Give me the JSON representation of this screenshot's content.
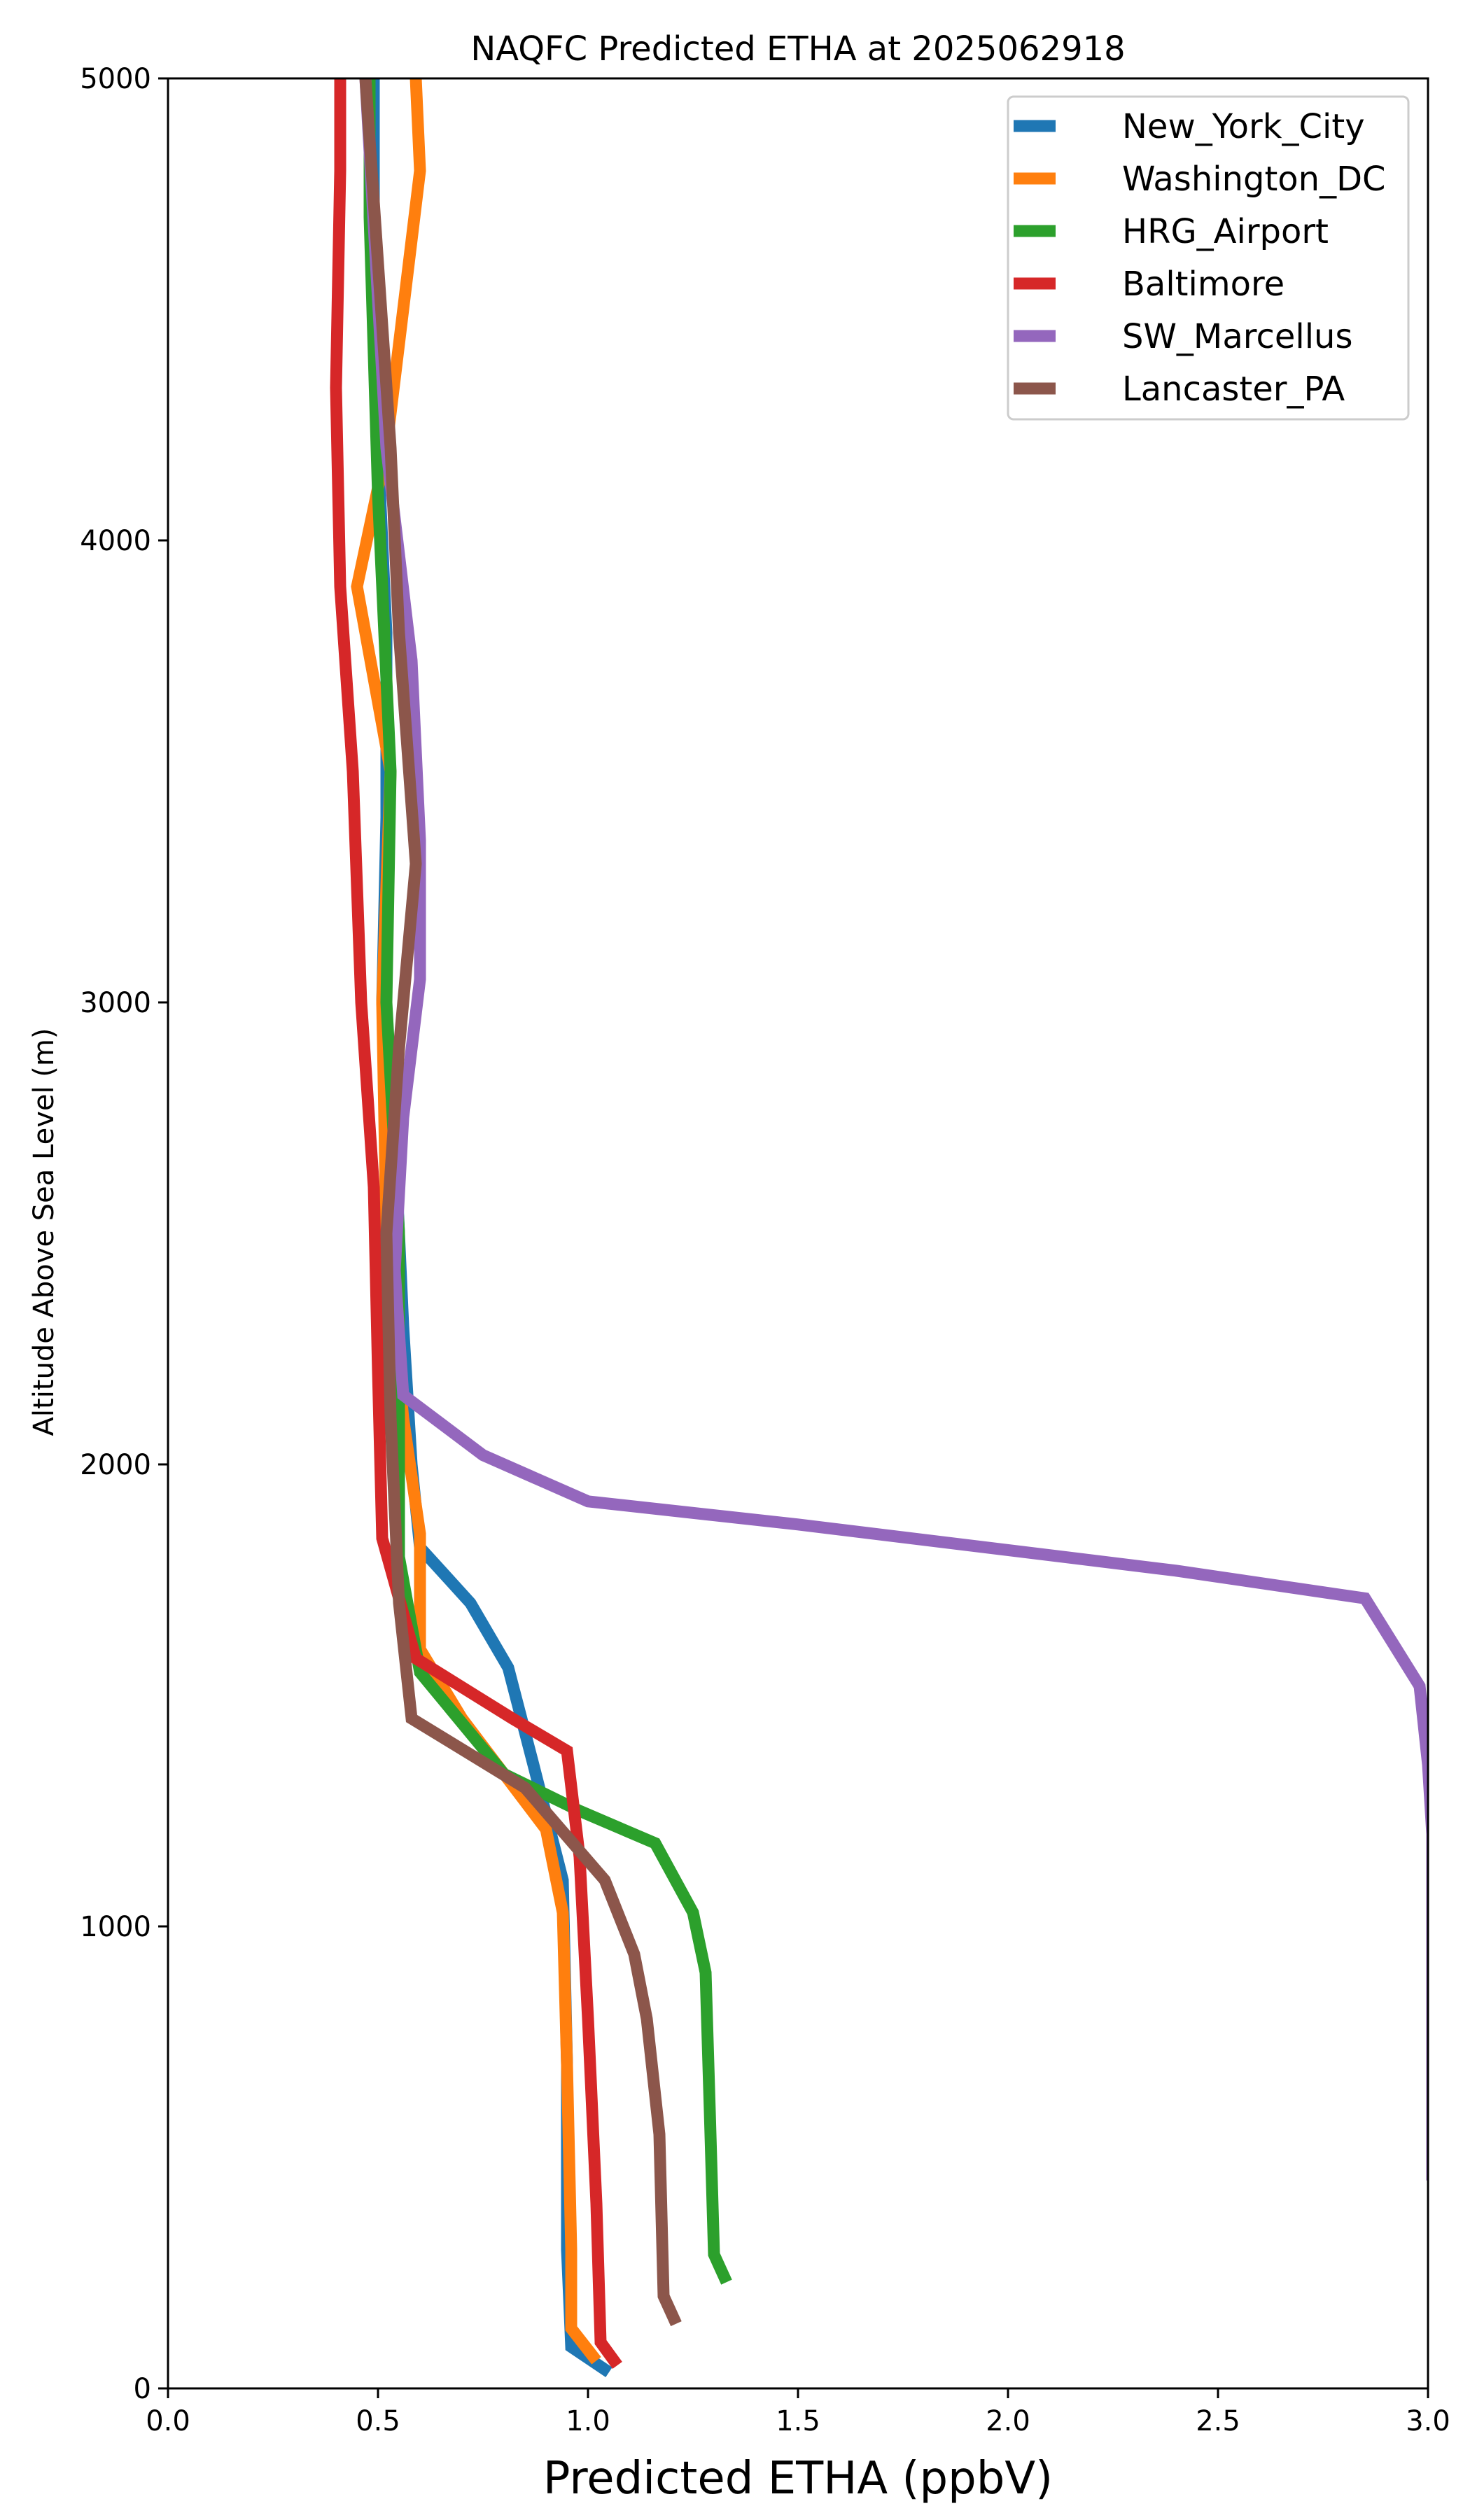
{
  "chart_data": {
    "type": "line",
    "title": "NAQFC Predicted ETHA at 2025062918",
    "xlabel": "Predicted ETHA (ppbV)",
    "ylabel": "Altitude Above Sea Level (m)",
    "xlim": [
      0,
      3.0
    ],
    "ylim": [
      0,
      5000
    ],
    "xticks": [
      0.0,
      0.5,
      1.0,
      1.5,
      2.0,
      2.5,
      3.0
    ],
    "xtick_labels": [
      "0.0",
      "0.5",
      "1.0",
      "1.5",
      "2.0",
      "2.5",
      "3.0"
    ],
    "yticks": [
      0,
      1000,
      2000,
      3000,
      4000,
      5000
    ],
    "ytick_labels": [
      "0",
      "1000",
      "2000",
      "3000",
      "4000",
      "5000"
    ],
    "grid": false,
    "legend_position": "top-right",
    "series": [
      {
        "name": "New_York_City",
        "color": "#1f77b4",
        "points": [
          [
            1.05,
            35
          ],
          [
            0.96,
            90
          ],
          [
            0.95,
            300
          ],
          [
            0.95,
            700
          ],
          [
            0.94,
            1100
          ],
          [
            0.87,
            1350
          ],
          [
            0.81,
            1560
          ],
          [
            0.72,
            1700
          ],
          [
            0.6,
            1820
          ],
          [
            0.58,
            2000
          ],
          [
            0.56,
            2300
          ],
          [
            0.54,
            2700
          ],
          [
            0.51,
            3000
          ],
          [
            0.52,
            3400
          ],
          [
            0.52,
            3800
          ],
          [
            0.5,
            4200
          ],
          [
            0.49,
            4600
          ],
          [
            0.49,
            5000
          ]
        ]
      },
      {
        "name": "Washington_DC",
        "color": "#ff7f0e",
        "points": [
          [
            1.02,
            60
          ],
          [
            0.96,
            130
          ],
          [
            0.96,
            300
          ],
          [
            0.95,
            700
          ],
          [
            0.94,
            1030
          ],
          [
            0.9,
            1210
          ],
          [
            0.7,
            1450
          ],
          [
            0.6,
            1600
          ],
          [
            0.6,
            1850
          ],
          [
            0.56,
            2100
          ],
          [
            0.52,
            2500
          ],
          [
            0.51,
            3000
          ],
          [
            0.53,
            3500
          ],
          [
            0.45,
            3900
          ],
          [
            0.52,
            4200
          ],
          [
            0.6,
            4800
          ],
          [
            0.59,
            5000
          ]
        ]
      },
      {
        "name": "HRG_Airport",
        "color": "#2ca02c",
        "points": [
          [
            1.33,
            230
          ],
          [
            1.3,
            290
          ],
          [
            1.29,
            600
          ],
          [
            1.28,
            900
          ],
          [
            1.25,
            1030
          ],
          [
            1.16,
            1180
          ],
          [
            0.98,
            1250
          ],
          [
            0.8,
            1330
          ],
          [
            0.6,
            1550
          ],
          [
            0.55,
            1800
          ],
          [
            0.55,
            2500
          ],
          [
            0.52,
            3000
          ],
          [
            0.53,
            3500
          ],
          [
            0.5,
            4100
          ],
          [
            0.48,
            4700
          ],
          [
            0.48,
            5000
          ]
        ]
      },
      {
        "name": "Baltimore",
        "color": "#d62728",
        "points": [
          [
            1.07,
            50
          ],
          [
            1.03,
            100
          ],
          [
            1.02,
            400
          ],
          [
            1.0,
            800
          ],
          [
            0.98,
            1150
          ],
          [
            0.95,
            1380
          ],
          [
            0.82,
            1450
          ],
          [
            0.59,
            1580
          ],
          [
            0.51,
            1840
          ],
          [
            0.5,
            2200
          ],
          [
            0.49,
            2600
          ],
          [
            0.46,
            3000
          ],
          [
            0.44,
            3500
          ],
          [
            0.41,
            3900
          ],
          [
            0.4,
            4330
          ],
          [
            0.41,
            4800
          ],
          [
            0.41,
            5000
          ]
        ]
      },
      {
        "name": "SW_Marcellus",
        "color": "#9467bd",
        "points": [
          [
            3.01,
            450
          ],
          [
            3.01,
            800
          ],
          [
            3.01,
            1200
          ],
          [
            3.0,
            1350
          ],
          [
            2.98,
            1520
          ],
          [
            2.85,
            1710
          ],
          [
            2.4,
            1770
          ],
          [
            1.5,
            1870
          ],
          [
            1.0,
            1920
          ],
          [
            0.75,
            2020
          ],
          [
            0.56,
            2150
          ],
          [
            0.54,
            2420
          ],
          [
            0.56,
            2750
          ],
          [
            0.6,
            3050
          ],
          [
            0.6,
            3350
          ],
          [
            0.58,
            3740
          ],
          [
            0.52,
            4200
          ],
          [
            0.47,
            5000
          ]
        ]
      },
      {
        "name": "Lancaster_PA",
        "color": "#8c564b",
        "points": [
          [
            1.21,
            140
          ],
          [
            1.18,
            200
          ],
          [
            1.17,
            550
          ],
          [
            1.14,
            800
          ],
          [
            1.11,
            940
          ],
          [
            1.04,
            1100
          ],
          [
            0.85,
            1300
          ],
          [
            0.58,
            1450
          ],
          [
            0.55,
            1700
          ],
          [
            0.53,
            2100
          ],
          [
            0.52,
            2500
          ],
          [
            0.55,
            2900
          ],
          [
            0.59,
            3300
          ],
          [
            0.55,
            3800
          ],
          [
            0.53,
            4200
          ],
          [
            0.47,
            5000
          ]
        ]
      }
    ]
  }
}
